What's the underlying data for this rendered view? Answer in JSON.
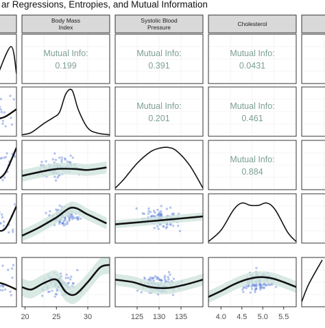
{
  "title": "ar Regressions, Entropies, and Mutual Information",
  "columns": [
    {
      "id": "c0",
      "strip": [
        ""
      ]
    },
    {
      "id": "bmi",
      "strip": [
        "Body Mass",
        "Index"
      ]
    },
    {
      "id": "sbp",
      "strip": [
        "Systolic Blood",
        "Pressure"
      ]
    },
    {
      "id": "chol",
      "strip": [
        "Cholesterol"
      ]
    },
    {
      "id": "c4",
      "strip": [
        ""
      ]
    }
  ],
  "mi_label": "Mutual Info:",
  "mutual_info": [
    {
      "row": 0,
      "col": 1,
      "value": "0.199"
    },
    {
      "row": 0,
      "col": 2,
      "value": "0.391"
    },
    {
      "row": 0,
      "col": 3,
      "value": "0.0431"
    },
    {
      "row": 1,
      "col": 2,
      "value": "0.201"
    },
    {
      "row": 1,
      "col": 3,
      "value": "0.461"
    },
    {
      "row": 2,
      "col": 3,
      "value": "0.884"
    }
  ],
  "x_axes": [
    {
      "col": 1,
      "ticks": [
        20,
        25,
        30
      ],
      "labels": [
        "20",
        "25",
        "30"
      ],
      "range": [
        19.5,
        33.5
      ]
    },
    {
      "col": 2,
      "ticks": [
        125,
        130,
        135
      ],
      "labels": [
        "125",
        "130",
        "135"
      ],
      "range": [
        120,
        140
      ]
    },
    {
      "col": 3,
      "ticks": [
        4.0,
        4.5,
        5.0,
        5.5
      ],
      "labels": [
        "4.0",
        "4.5",
        "5.0",
        "5.5"
      ],
      "range": [
        3.7,
        5.8
      ]
    }
  ],
  "colors": {
    "strip_bg": "#d9d9d9",
    "panel_border": "#333333",
    "grid": "#ebebeb",
    "mi_text": "#7b9e91",
    "point": "#5b7fd6",
    "ribbon": "#cfe3dc",
    "line": "#111111"
  },
  "chart_data": {
    "type": "scatter",
    "layout": "pairs-matrix",
    "densities": [
      {
        "col": 1,
        "x": [
          19.5,
          21,
          23,
          24.5,
          25.5,
          26.5,
          27.5,
          28.5,
          30,
          31.5,
          33.5
        ],
        "y": [
          0.0,
          0.05,
          0.25,
          0.38,
          0.5,
          0.9,
          0.98,
          0.55,
          0.15,
          0.04,
          0.0
        ]
      },
      {
        "col": 2,
        "x": [
          120,
          122,
          125,
          128,
          130,
          132,
          134,
          137,
          140
        ],
        "y": [
          0.0,
          0.2,
          0.55,
          0.8,
          0.88,
          0.9,
          0.82,
          0.5,
          0.0
        ]
      },
      {
        "col": 3,
        "x": [
          3.7,
          4.0,
          4.3,
          4.5,
          4.7,
          4.9,
          5.1,
          5.3,
          5.6,
          5.8
        ],
        "y": [
          0.0,
          0.25,
          0.7,
          0.85,
          0.8,
          0.8,
          0.85,
          0.7,
          0.2,
          0.0
        ]
      }
    ],
    "smooth_fits": [
      {
        "row": 2,
        "col": 1,
        "x": [
          19.5,
          22,
          25,
          28,
          30,
          33
        ],
        "y": [
          0.28,
          0.35,
          0.42,
          0.42,
          0.4,
          0.45
        ],
        "band": 0.12
      },
      {
        "row": 3,
        "col": 1,
        "x": [
          19.5,
          22,
          25,
          27.5,
          30,
          33
        ],
        "y": [
          0.15,
          0.3,
          0.52,
          0.72,
          0.58,
          0.4
        ],
        "band": 0.12
      },
      {
        "row": 3,
        "col": 2,
        "x": [
          120,
          125,
          130,
          135,
          140
        ],
        "y": [
          0.38,
          0.42,
          0.46,
          0.5,
          0.54
        ],
        "band": 0.08
      },
      {
        "row": 4,
        "col": 1,
        "x": [
          19.5,
          21,
          23,
          25,
          26.5,
          28,
          30,
          32,
          33.5
        ],
        "y": [
          0.4,
          0.35,
          0.48,
          0.55,
          0.3,
          0.25,
          0.5,
          0.8,
          0.85
        ],
        "band": 0.18
      },
      {
        "row": 4,
        "col": 2,
        "x": [
          120,
          124,
          128,
          132,
          136,
          140
        ],
        "y": [
          0.55,
          0.5,
          0.4,
          0.38,
          0.45,
          0.55
        ],
        "band": 0.12
      },
      {
        "row": 4,
        "col": 3,
        "x": [
          3.7,
          4.0,
          4.3,
          4.6,
          4.9,
          5.2,
          5.5,
          5.8
        ],
        "y": [
          0.2,
          0.32,
          0.45,
          0.55,
          0.6,
          0.58,
          0.5,
          0.4
        ],
        "band": 0.12
      }
    ],
    "scatter_points": [
      {
        "row": 2,
        "col": 1,
        "n": 90,
        "x_center": 25,
        "x_spread": 2.8,
        "y_center": 0.45,
        "y_spread": 0.22,
        "slope": 0.0
      },
      {
        "row": 3,
        "col": 1,
        "n": 90,
        "x_center": 26,
        "x_spread": 2.6,
        "y_center": 0.55,
        "y_spread": 0.22,
        "slope": 0.05
      },
      {
        "row": 3,
        "col": 2,
        "n": 100,
        "x_center": 130,
        "x_spread": 4,
        "y_center": 0.5,
        "y_spread": 0.22,
        "slope": 0.012
      },
      {
        "row": 4,
        "col": 1,
        "n": 90,
        "x_center": 25.5,
        "x_spread": 2.8,
        "y_center": 0.45,
        "y_spread": 0.22,
        "slope": 0.02
      },
      {
        "row": 4,
        "col": 2,
        "n": 100,
        "x_center": 130,
        "x_spread": 4,
        "y_center": 0.45,
        "y_spread": 0.22,
        "slope": 0.0
      },
      {
        "row": 4,
        "col": 3,
        "n": 100,
        "x_center": 4.9,
        "x_spread": 0.35,
        "y_center": 0.5,
        "y_spread": 0.22,
        "slope": 0.3
      }
    ],
    "offscreen_left": [
      {
        "row": 0,
        "x": [
          0,
          10,
          14
        ],
        "y": [
          0.15,
          0.75,
          0.2
        ]
      },
      {
        "row": 1,
        "x": [
          0,
          6,
          14
        ],
        "y": [
          0.35,
          0.4,
          0.55
        ],
        "points": true
      },
      {
        "row": 2,
        "x": [
          0,
          6,
          14
        ],
        "y": [
          0.2,
          0.35,
          0.85
        ],
        "points": true
      },
      {
        "row": 3,
        "x": [
          0,
          6,
          14
        ],
        "y": [
          0.25,
          0.3,
          0.75
        ],
        "points": true
      },
      {
        "row": 4,
        "x": [
          0,
          6,
          14
        ],
        "y": [
          0.5,
          0.45,
          0.35
        ],
        "points": true
      }
    ],
    "offscreen_right": {
      "row": 4,
      "x": [
        0,
        10,
        30
      ],
      "y": [
        0.1,
        0.45,
        0.95
      ]
    },
    "xlabel": "",
    "ylabel": "",
    "grid": true,
    "legend": "none"
  }
}
